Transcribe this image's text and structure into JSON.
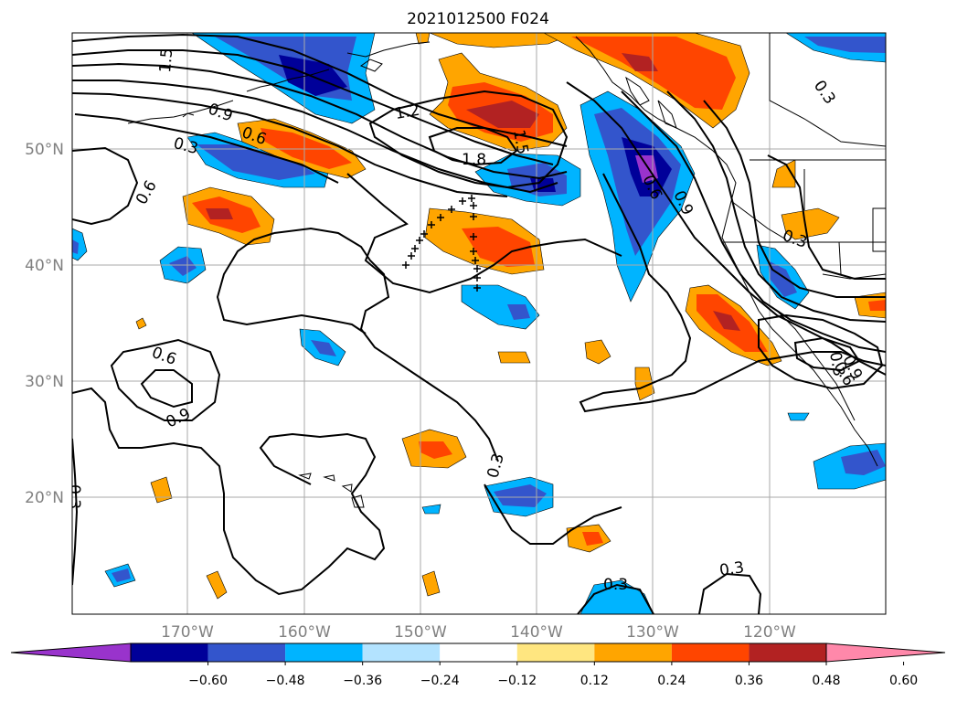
{
  "title": "2021012500 F024",
  "lon_ticks": [
    "170°W",
    "160°W",
    "150°W",
    "140°W",
    "130°W",
    "120°W"
  ],
  "lat_ticks": [
    "50°N",
    "40°N",
    "30°N",
    "20°N"
  ],
  "colorbar": {
    "labels": [
      "-0.60",
      "-0.48",
      "-0.36",
      "-0.24",
      "-0.12",
      "0.12",
      "0.24",
      "0.36",
      "0.48",
      "0.60"
    ],
    "colors": [
      "#9933cc",
      "#000099",
      "#3355cc",
      "#00b4ff",
      "#b3e3ff",
      "#ffffff",
      "#ffe680",
      "#ffa500",
      "#ff4500",
      "#b22222",
      "#ff88aa"
    ]
  },
  "contour_labels": [
    "1.5",
    "0.9",
    "0.6",
    "0.3",
    "0.6",
    "1.2",
    "1.8",
    "1.5",
    "0.6",
    "0.9",
    "0.3",
    "0.3",
    "0.6",
    "0.9",
    "0.3",
    "0.3",
    "0.3",
    "0.3",
    "0.9",
    "0.6",
    "0.3"
  ],
  "map_data": {
    "type": "contour-overlay",
    "colors": {
      "purple": "#9933cc",
      "navy": "#000099",
      "blue": "#3355cc",
      "cyan": "#00b4ff",
      "lightcyan": "#b3e3ff",
      "yellow": "#ffe680",
      "orange": "#ffa500",
      "redorange": "#ff4500",
      "darkred": "#b22222",
      "pink": "#ff88aa"
    }
  }
}
